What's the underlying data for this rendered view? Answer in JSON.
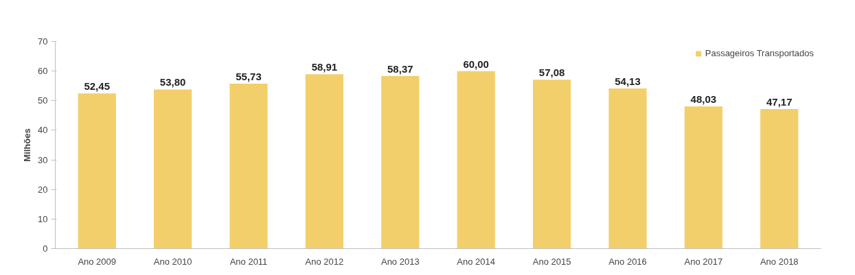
{
  "chart_data": {
    "type": "bar",
    "ylabel": "Milhões",
    "categories": [
      "Ano 2009",
      "Ano 2010",
      "Ano 2011",
      "Ano 2012",
      "Ano 2013",
      "Ano 2014",
      "Ano 2015",
      "Ano 2016",
      "Ano 2017",
      "Ano 2018"
    ],
    "series": [
      {
        "name": "Passageiros Transportados",
        "color": "#f2cf6a",
        "values": [
          52.45,
          53.8,
          55.73,
          58.91,
          58.37,
          60.0,
          57.08,
          54.13,
          48.03,
          47.17
        ]
      }
    ],
    "value_labels": [
      "52,45",
      "53,80",
      "55,73",
      "58,91",
      "58,37",
      "60,00",
      "57,08",
      "54,13",
      "48,03",
      "47,17"
    ],
    "ylim": [
      0,
      70
    ],
    "yticks": [
      0,
      10,
      20,
      30,
      40,
      50,
      60,
      70
    ],
    "grid": false,
    "legend": "top right"
  }
}
